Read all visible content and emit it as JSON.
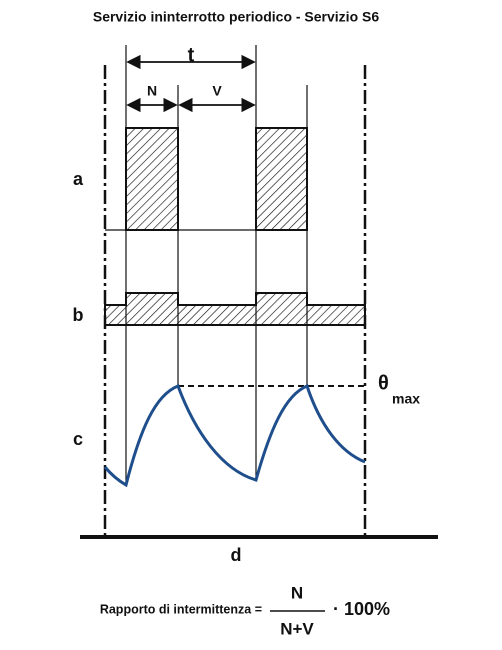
{
  "title": "Servizio ininterrotto periodico - Servizio S6",
  "labels": {
    "t": "t",
    "N": "N",
    "V": "V",
    "a": "a",
    "b": "b",
    "c": "c",
    "theta": "θ",
    "theta_sub": "max",
    "d": "d"
  },
  "formula": {
    "prefix": "Rapporto di intermittenza =",
    "numerator": "N",
    "denominator": "N+V",
    "suffix": "· 100%"
  }
}
